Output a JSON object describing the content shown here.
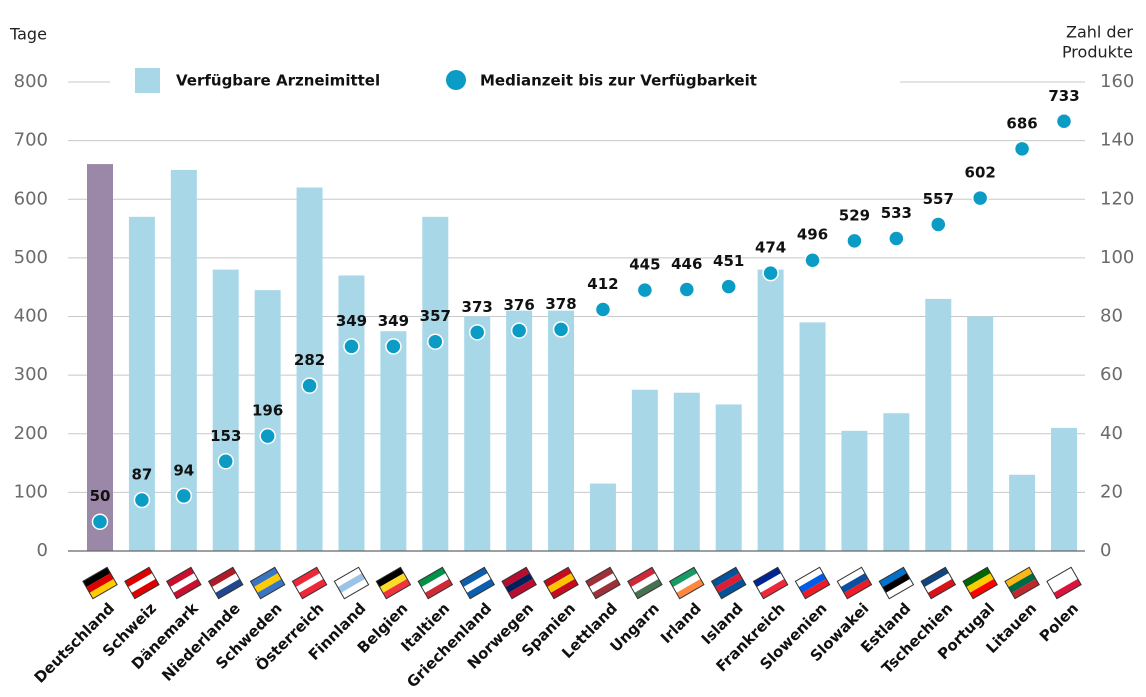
{
  "chart_data": {
    "type": "bar_dot",
    "y_label": "Tage",
    "y2_label": [
      "Zahl der",
      "Produkte"
    ],
    "categories": [
      "Deutschland",
      "Schweiz",
      "Dänemark",
      "Niederlande",
      "Schweden",
      "Österreich",
      "Finnland",
      "Belgien",
      "Italtien",
      "Griechenland",
      "Norwegen",
      "Spanien",
      "Lettland",
      "Ungarn",
      "Irland",
      "Island",
      "Frankreich",
      "Slowenien",
      "Slowakei",
      "Estland",
      "Tschechien",
      "Portugal",
      "Litauen",
      "Polen"
    ],
    "series": [
      {
        "name": "Verfügbare Arzneimittel",
        "kind": "bar",
        "axis": "y2",
        "color": "#a8d8e8",
        "colors": [
          "#9b87a8",
          "#a8d8e8",
          "#a8d8e8",
          "#a8d8e8",
          "#a8d8e8",
          "#a8d8e8",
          "#a8d8e8",
          "#a8d8e8",
          "#a8d8e8",
          "#a8d8e8",
          "#a8d8e8",
          "#a8d8e8",
          "#a8d8e8",
          "#a8d8e8",
          "#a8d8e8",
          "#a8d8e8",
          "#a8d8e8",
          "#a8d8e8",
          "#a8d8e8",
          "#a8d8e8",
          "#a8d8e8",
          "#a8d8e8",
          "#a8d8e8",
          "#a8d8e8"
        ],
        "values": [
          132,
          114,
          130,
          96,
          89,
          124,
          94,
          75,
          114,
          80,
          82,
          82,
          23,
          55,
          54,
          50,
          96,
          78,
          41,
          47,
          86,
          80,
          26,
          42
        ]
      },
      {
        "name": "Medianzeit bis zur Verfügbarkeit",
        "kind": "dot",
        "axis": "y",
        "color": "#0a9cc4",
        "values": [
          50,
          87,
          94,
          153,
          196,
          282,
          349,
          349,
          357,
          373,
          376,
          378,
          412,
          445,
          446,
          451,
          474,
          496,
          529,
          533,
          557,
          602,
          686,
          733
        ]
      }
    ],
    "ylim": [
      0,
      800
    ],
    "yticks": [
      0,
      100,
      200,
      300,
      400,
      500,
      600,
      700,
      800
    ],
    "y2lim": [
      0,
      160
    ],
    "y2ticks": [
      0,
      20,
      40,
      60,
      80,
      100,
      120,
      140,
      160
    ],
    "grid": true
  }
}
